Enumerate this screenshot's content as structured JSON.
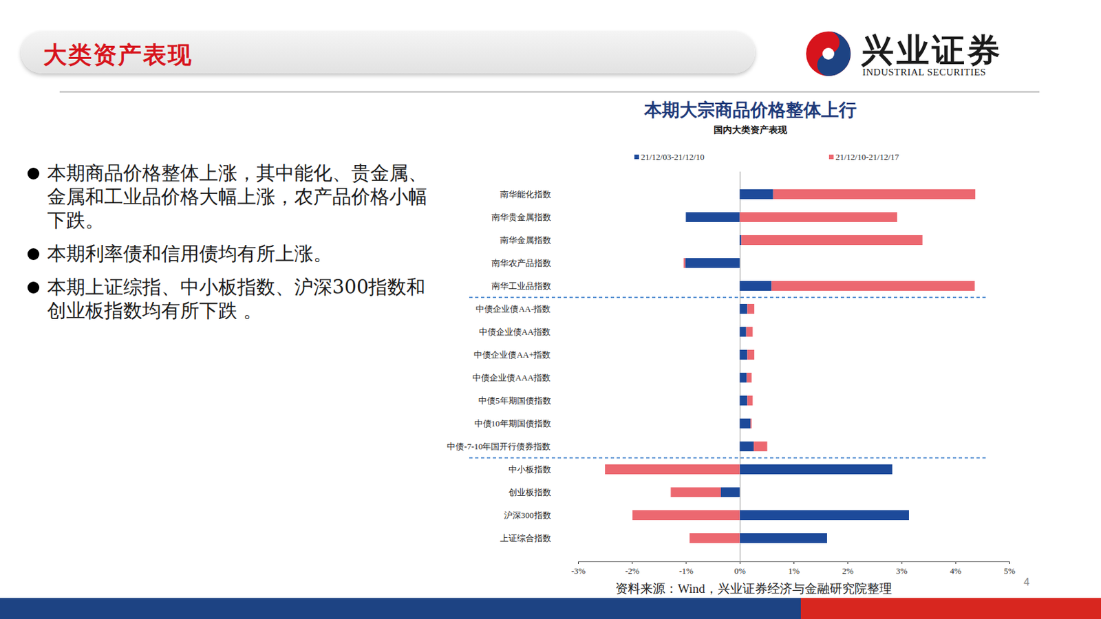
{
  "header": {
    "title": "大类资产表现"
  },
  "logo": {
    "name": "兴业证券",
    "name_en": "INDUSTRIAL SECURITIES"
  },
  "bullets": [
    "本期商品价格整体上涨，其中能化、贵金属、金属和工业品价格大幅上涨，农产品价格小幅下跌。",
    "本期利率债和信用债均有所上涨。",
    "本期上证综指、中小板指数、沪深300指数和创业板指数均有所下跌 。"
  ],
  "page_number": "4",
  "chart_data": {
    "type": "bar",
    "title": "本期大宗商品价格整体上行",
    "subtitle": "国内大类资产表现",
    "source": "资料来源：Wind，兴业证券经济与金融研究院整理",
    "orientation": "horizontal",
    "stacked": true,
    "grid": false,
    "categories": [
      "南华能化指数",
      "南华贵金属指数",
      "南华金属指数",
      "南华农产品指数",
      "南华工业品指数",
      "中债企业债AA-指数",
      "中债企业债AA指数",
      "中债企业债AA+指数",
      "中债企业债AAA指数",
      "中债5年期国债指数",
      "中债10年期国债指数",
      "中债-7-10年国开行债券指数",
      "中小板指数",
      "创业板指数",
      "沪深300指数",
      "上证综合指数"
    ],
    "series": [
      {
        "name": "21/12/03-21/12/10",
        "color": "#1d4a9a",
        "values": [
          0.62,
          -1.0,
          0.03,
          -1.01,
          0.59,
          0.14,
          0.12,
          0.14,
          0.13,
          0.14,
          0.2,
          0.26,
          2.83,
          -0.35,
          3.14,
          1.62
        ]
      },
      {
        "name": "21/12/10-21/12/17",
        "color": "#ec6870",
        "values": [
          3.75,
          2.92,
          3.36,
          -0.03,
          3.77,
          0.13,
          0.12,
          0.13,
          0.09,
          0.1,
          0.02,
          0.25,
          -2.5,
          -0.93,
          -1.99,
          -0.93
        ]
      }
    ],
    "xlim": [
      -3,
      5
    ],
    "xticks": [
      {
        "value": -3,
        "label": "-3%"
      },
      {
        "value": -2,
        "label": "-2%"
      },
      {
        "value": -1,
        "label": "-1%"
      },
      {
        "value": 0,
        "label": "0%"
      },
      {
        "value": 1,
        "label": "1%"
      },
      {
        "value": 2,
        "label": "2%"
      },
      {
        "value": 3,
        "label": "3%"
      },
      {
        "value": 4,
        "label": "4%"
      },
      {
        "value": 5,
        "label": "5%"
      }
    ]
  }
}
